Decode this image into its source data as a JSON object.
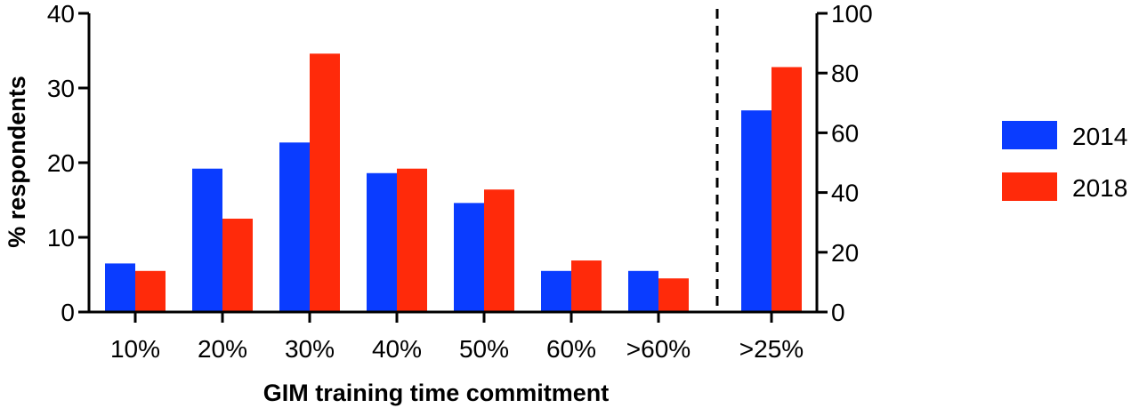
{
  "chart_data": {
    "type": "bar",
    "title": "",
    "xlabel": "GIM training time commitment",
    "ylabel": "% respondents",
    "left_axis": {
      "ylim": [
        0,
        40
      ],
      "ticks": [
        "0",
        "10",
        "20",
        "30",
        "40"
      ],
      "categories": [
        "10%",
        "20%",
        "30%",
        "40%",
        "50%",
        "60%",
        ">60%"
      ]
    },
    "right_axis": {
      "ylim": [
        0,
        100
      ],
      "ticks": [
        "0",
        "20",
        "40",
        "60",
        "80",
        "100"
      ],
      "categories": [
        ">25%"
      ]
    },
    "series": [
      {
        "name": "2014",
        "color": "#0a3cff",
        "values": [
          6.5,
          19.2,
          22.7,
          18.6,
          14.6,
          5.5,
          5.5
        ],
        "right_values": [
          67.5
        ]
      },
      {
        "name": "2018",
        "color": "#ff2a0a",
        "values": [
          5.5,
          12.5,
          34.6,
          19.2,
          16.4,
          6.9,
          4.5
        ],
        "right_values": [
          82
        ]
      }
    ],
    "divider": "dashed vertical line separating >25% group",
    "legend_position": "right",
    "grid": false
  }
}
